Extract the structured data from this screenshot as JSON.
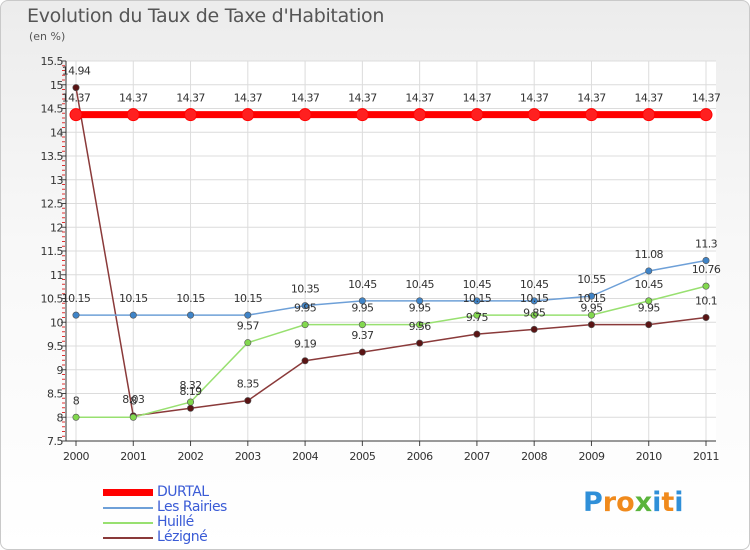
{
  "title": "Evolution du Taux de Taxe d'Habitation",
  "unit_label": "(en %)",
  "brand": {
    "letters": [
      "P",
      "r",
      "o",
      "x",
      "i",
      "t",
      "i"
    ],
    "colors": [
      "#2f8fd8",
      "#f08a1c",
      "#f08a1c",
      "#5ab43c",
      "#2f8fd8",
      "#f08a1c",
      "#2f8fd8"
    ]
  },
  "chart_data": {
    "type": "line",
    "title": "Evolution du Taux de Taxe d'Habitation",
    "ylabel": "(en %)",
    "xlabel": "",
    "ylim": [
      7.5,
      15.5
    ],
    "yticks": [
      "7.5",
      "8",
      "8.5",
      "9",
      "9.5",
      "10",
      "10.5",
      "11",
      "11.5",
      "12",
      "12.5",
      "13",
      "13.5",
      "14",
      "14.5",
      "15",
      "15.5"
    ],
    "x": [
      "2000",
      "2001",
      "2002",
      "2003",
      "2004",
      "2005",
      "2006",
      "2007",
      "2008",
      "2009",
      "2010",
      "2011"
    ],
    "grid": true,
    "series": [
      {
        "name": "DURTAL",
        "color": "#ff0000",
        "marker": "#ff2020",
        "thick": true,
        "values": [
          14.37,
          14.37,
          14.37,
          14.37,
          14.37,
          14.37,
          14.37,
          14.37,
          14.37,
          14.37,
          14.37,
          14.37
        ],
        "labels": [
          "14.37",
          "14.37",
          "14.37",
          "14.37",
          "14.37",
          "14.37",
          "14.37",
          "14.37",
          "14.37",
          "14.37",
          "14.37",
          "14.37"
        ]
      },
      {
        "name": "Les Rairies",
        "color": "#6ea0d8",
        "marker": "#3f84c8",
        "thick": false,
        "values": [
          10.15,
          10.15,
          10.15,
          10.15,
          10.35,
          10.45,
          10.45,
          10.45,
          10.45,
          10.55,
          11.08,
          11.3
        ],
        "labels": [
          "10.15",
          "10.15",
          "10.15",
          "10.15",
          "10.35",
          "10.45",
          "10.45",
          "10.45",
          "10.45",
          "10.55",
          "11.08",
          "11.3"
        ]
      },
      {
        "name": "Huillé",
        "color": "#98e070",
        "marker": "#82d84e",
        "thick": false,
        "values": [
          8,
          8,
          8.32,
          9.57,
          9.95,
          9.95,
          9.95,
          10.15,
          10.15,
          10.15,
          10.45,
          10.76
        ],
        "labels": [
          "8",
          "8",
          "8.32",
          "9.57",
          "9.95",
          "9.95",
          "9.95",
          "10.15",
          "10.15",
          "10.15",
          "10.45",
          "10.76"
        ]
      },
      {
        "name": "Lézigné",
        "color": "#8a3a3a",
        "marker": "#5a1414",
        "thick": false,
        "values": [
          14.94,
          8.03,
          8.19,
          8.35,
          9.19,
          9.37,
          9.56,
          9.75,
          9.85,
          9.95,
          9.95,
          10.1
        ],
        "labels": [
          "14.94",
          "8.03",
          "8.19",
          "8.35",
          "9.19",
          "9.37",
          "9.56",
          "9.75",
          "9.85",
          "9.95",
          "9.95",
          "10.1"
        ]
      }
    ],
    "legend_position": "bottom-left"
  }
}
